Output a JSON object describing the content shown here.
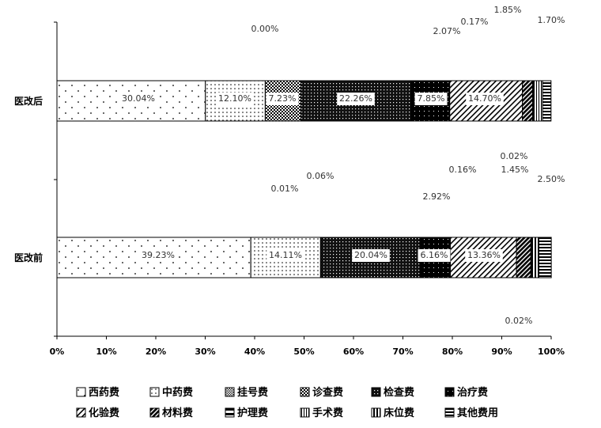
{
  "chart_data": {
    "type": "bar",
    "orientation": "horizontal",
    "stacked": true,
    "percent_stacked": true,
    "xlim": [
      0,
      100
    ],
    "x_ticks": [
      "0%",
      "10%",
      "20%",
      "30%",
      "40%",
      "50%",
      "60%",
      "70%",
      "80%",
      "90%",
      "100%"
    ],
    "categories": [
      "医改后",
      "医改前"
    ],
    "legend": {
      "position": "bottom",
      "columns": 6
    },
    "grid": false,
    "series": [
      {
        "name": "西药费",
        "pattern": "dots-sparse",
        "values": [
          30.04,
          39.23
        ],
        "labels": [
          "30.04%",
          "39.23%"
        ]
      },
      {
        "name": "中药费",
        "pattern": "dots-dense",
        "values": [
          12.1,
          14.11
        ],
        "labels": [
          "12.10%",
          "14.11%"
        ]
      },
      {
        "name": "挂号费",
        "pattern": "checker-fine",
        "values": [
          0.0,
          0.01
        ],
        "labels": [
          "0.00%",
          "0.01%"
        ]
      },
      {
        "name": "诊查费",
        "pattern": "checker",
        "values": [
          7.23,
          0.06
        ],
        "labels": [
          "7.23%",
          "0.06%"
        ]
      },
      {
        "name": "检查费",
        "pattern": "dark-dots",
        "values": [
          22.26,
          20.04
        ],
        "labels": [
          "22.26%",
          "20.04%"
        ]
      },
      {
        "name": "治疗费",
        "pattern": "solid-dark",
        "values": [
          7.85,
          6.16
        ],
        "labels": [
          "7.85%",
          "6.16%"
        ]
      },
      {
        "name": "化验费",
        "pattern": "diag-light",
        "values": [
          14.7,
          13.36
        ],
        "labels": [
          "14.70%",
          "13.36%"
        ]
      },
      {
        "name": "材料费",
        "pattern": "diag-dark",
        "values": [
          2.07,
          2.92
        ],
        "labels": [
          "2.07%",
          "2.92%"
        ]
      },
      {
        "name": "护理费",
        "pattern": "half-dark",
        "values": [
          0.17,
          0.16
        ],
        "labels": [
          "0.17%",
          "0.16%"
        ]
      },
      {
        "name": "手术费",
        "pattern": "vert-thin",
        "values": [
          1.85,
          0.02
        ],
        "labels": [
          "1.85%",
          "0.02%"
        ]
      },
      {
        "name": "床位费",
        "pattern": "vert-thick",
        "values": [
          0.0,
          1.45
        ],
        "labels": [
          "",
          "1.45%"
        ]
      },
      {
        "name": "其他费用",
        "pattern": "horiz",
        "values": [
          1.7,
          2.5
        ],
        "labels": [
          "1.70%",
          "2.50%"
        ]
      }
    ],
    "extra_labels": [
      "0.02%"
    ]
  }
}
